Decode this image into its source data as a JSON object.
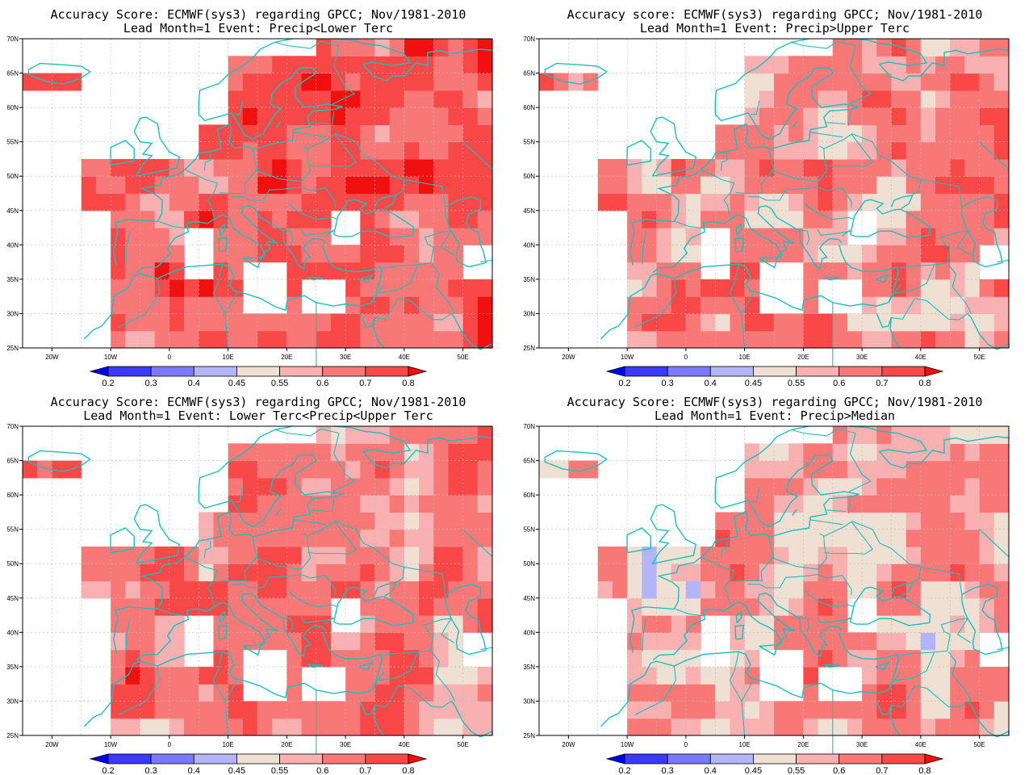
{
  "panels": [
    {
      "id": "p1",
      "title_line1": "Accuracy Score: ECMWF(sys3) regarding GPCC; Nov/1981-2010",
      "title_line2": "Lead Month=1 Event: Precip<Lower Terc",
      "bias": 0.1,
      "seed": 11
    },
    {
      "id": "p2",
      "title_line1": "Accuracy score: ECMWF(sys3) regarding GPCC; Nov/1981-2010",
      "title_line2": "Lead Month=1 Event: Precip>Upper Terc",
      "bias": 0.02,
      "seed": 23
    },
    {
      "id": "p3",
      "title_line1": "Accuracy Score: ECMWF(sys3) regarding GPCC; Nov/1981-2010",
      "title_line2": "Lead Month=1 Event: Lower Terc<Precip<Upper Terc",
      "bias": 0.05,
      "seed": 37
    },
    {
      "id": "p4",
      "title_line1": "Accuracy Score: ECMWF(sys3) regarding GPCC; Nov/1981-2010",
      "title_line2": "Lead Month=1 Event: Precip>Median",
      "bias": -0.02,
      "seed": 53
    }
  ],
  "axes": {
    "lon_min": -25,
    "lon_max": 55,
    "lat_min": 25,
    "lat_max": 70,
    "lon_ticks": [
      {
        "v": -20,
        "t": "20W"
      },
      {
        "v": -10,
        "t": "10W"
      },
      {
        "v": 0,
        "t": "0"
      },
      {
        "v": 10,
        "t": "10E"
      },
      {
        "v": 20,
        "t": "20E"
      },
      {
        "v": 30,
        "t": "30E"
      },
      {
        "v": 40,
        "t": "40E"
      },
      {
        "v": 50,
        "t": "50E"
      }
    ],
    "lat_ticks": [
      {
        "v": 25,
        "t": "25N"
      },
      {
        "v": 30,
        "t": "30N"
      },
      {
        "v": 35,
        "t": "35N"
      },
      {
        "v": 40,
        "t": "40N"
      },
      {
        "v": 45,
        "t": "45N"
      },
      {
        "v": 50,
        "t": "50N"
      },
      {
        "v": 55,
        "t": "55N"
      },
      {
        "v": 60,
        "t": "60N"
      },
      {
        "v": 65,
        "t": "65N"
      },
      {
        "v": 70,
        "t": "70N"
      }
    ]
  },
  "colorbar": {
    "labels": [
      "0.2",
      "0.3",
      "0.4",
      "0.45",
      "0.55",
      "0.6",
      "0.7",
      "0.8"
    ],
    "levels": [
      0.2,
      0.3,
      0.4,
      0.45,
      0.55,
      0.6,
      0.7,
      0.8
    ],
    "colors": [
      "#0000ee",
      "#3a3af8",
      "#7a7af8",
      "#b4b4f8",
      "#f0e0d4",
      "#f8b0b0",
      "#f87878",
      "#f84848",
      "#f01010"
    ]
  },
  "colors": {
    "coast": "#18c0c0",
    "grid": "#bbbbbb"
  }
}
